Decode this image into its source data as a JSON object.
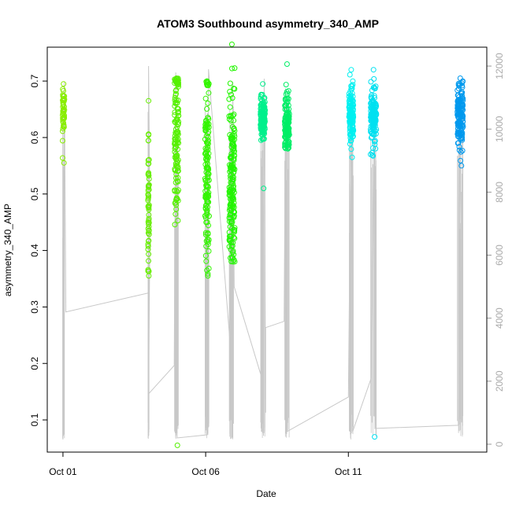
{
  "chart_data": {
    "type": "scatter",
    "title": "ATOM3 Southbound asymmetry_340_AMP",
    "xlabel": "Date",
    "ylabel": "asymmetry_340_AMP",
    "x_tick_labels": [
      "Oct 01",
      "Oct 06",
      "Oct 11"
    ],
    "x_tick_values": [
      1,
      6,
      11
    ],
    "y_left_ticks": [
      0.1,
      0.2,
      0.3,
      0.4,
      0.5,
      0.6,
      0.7
    ],
    "y_left_range": [
      0.043,
      0.76
    ],
    "y_right_ticks": [
      0,
      2000,
      4000,
      6000,
      8000,
      10000,
      12000
    ],
    "y_right_range": [
      -250,
      12600
    ],
    "x_range": [
      0.45,
      15.85
    ],
    "grid": false,
    "clusters": [
      {
        "day": 1.02,
        "width": 0.07,
        "center": 0.64,
        "spread": 0.025,
        "min": 0.555,
        "max": 0.695,
        "count": 45,
        "color": "#88ee00"
      },
      {
        "day": 4.0,
        "width": 0.04,
        "center": 0.5,
        "spread": 0.08,
        "min": 0.355,
        "max": 0.665,
        "count": 55,
        "color": "#66ee00"
      },
      {
        "day": 4.98,
        "width": 0.14,
        "center": 0.6,
        "spread": 0.08,
        "min": 0.055,
        "max": 0.705,
        "count": 130,
        "color": "#55f000"
      },
      {
        "day": 6.05,
        "width": 0.14,
        "center": 0.54,
        "spread": 0.08,
        "min": 0.355,
        "max": 0.7,
        "count": 140,
        "color": "#33f500"
      },
      {
        "day": 6.92,
        "width": 0.2,
        "center": 0.52,
        "spread": 0.08,
        "min": 0.38,
        "max": 0.765,
        "count": 180,
        "color": "#22f500"
      },
      {
        "day": 8.0,
        "width": 0.16,
        "center": 0.64,
        "spread": 0.02,
        "min": 0.51,
        "max": 0.695,
        "count": 140,
        "color": "#00f08c"
      },
      {
        "day": 8.85,
        "width": 0.16,
        "center": 0.62,
        "spread": 0.025,
        "min": 0.58,
        "max": 0.73,
        "count": 130,
        "color": "#00ee66"
      },
      {
        "day": 11.1,
        "width": 0.16,
        "center": 0.64,
        "spread": 0.025,
        "min": 0.565,
        "max": 0.72,
        "count": 130,
        "color": "#00f0f0"
      },
      {
        "day": 11.88,
        "width": 0.2,
        "center": 0.64,
        "spread": 0.025,
        "min": 0.07,
        "max": 0.72,
        "count": 150,
        "color": "#00e0f0"
      },
      {
        "day": 14.92,
        "width": 0.2,
        "center": 0.64,
        "spread": 0.03,
        "min": 0.55,
        "max": 0.705,
        "count": 150,
        "color": "#0099ee"
      }
    ],
    "count_series": {
      "name": "",
      "color": "#c8c8c8",
      "points": [
        [
          1.0,
          150
        ],
        [
          1.02,
          4000
        ],
        [
          1.05,
          11500
        ],
        [
          1.1,
          4200
        ],
        [
          4.0,
          4800
        ],
        [
          4.0,
          12000
        ],
        [
          4.05,
          7000
        ],
        [
          4.0,
          1600
        ],
        [
          4.9,
          2500
        ],
        [
          4.95,
          11800
        ],
        [
          5.0,
          200
        ],
        [
          6.05,
          300
        ],
        [
          6.1,
          11900
        ],
        [
          6.9,
          2700
        ],
        [
          6.95,
          500
        ],
        [
          6.95,
          11500
        ],
        [
          7.0,
          5000
        ],
        [
          8.0,
          2000
        ],
        [
          8.05,
          11600
        ],
        [
          8.1,
          1000
        ],
        [
          8.1,
          3700
        ],
        [
          8.75,
          3900
        ],
        [
          8.8,
          11300
        ],
        [
          8.85,
          400
        ],
        [
          11.0,
          1500
        ],
        [
          11.1,
          10800
        ],
        [
          11.15,
          400
        ],
        [
          11.8,
          2100
        ],
        [
          11.9,
          9200
        ],
        [
          11.95,
          500
        ],
        [
          14.85,
          600
        ],
        [
          14.9,
          10700
        ],
        [
          15.0,
          300
        ]
      ]
    }
  }
}
